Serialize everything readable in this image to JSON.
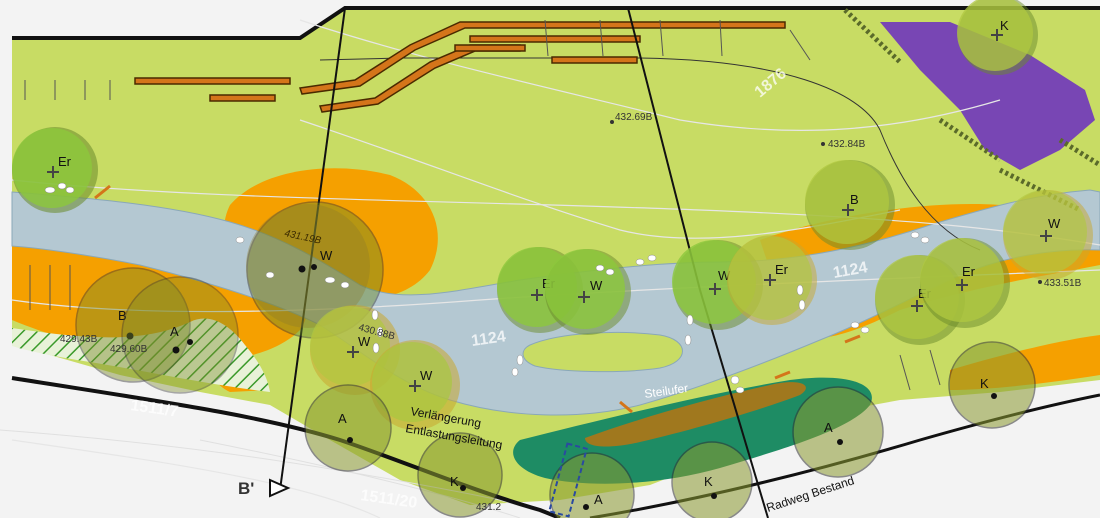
{
  "parcels": {
    "p1": "1511/7",
    "p2": "1511/20",
    "p3": "1124",
    "p4": "1124",
    "p5": "1876"
  },
  "elevations": {
    "e1": "432.69B",
    "e2": "432.84B",
    "e3": "431.19B",
    "e4": "430.88B",
    "e5": "433.51B",
    "e6": "429.43B",
    "e7": "429.60B",
    "e8": "431.2"
  },
  "annotations": {
    "extension_line1": "Verlängerung",
    "extension_line2": "Entlastungsleitung",
    "steilufer": "Steilufer",
    "radweg": "Radweg Bestand",
    "section_marker": "B'"
  },
  "tree_labels": {
    "er1": "Er",
    "w1": "W",
    "b1": "B",
    "a1": "A",
    "w2": "W",
    "w3": "W",
    "er2": "Er",
    "w4": "W",
    "w5": "W",
    "er3": "Er",
    "b2": "B",
    "w6": "W",
    "er4": "Er",
    "er5": "Er",
    "k1": "K",
    "a2": "A",
    "k2": "K",
    "a3": "A",
    "k3": "K",
    "a4": "A",
    "k4": "K"
  },
  "colors": {
    "meadow": "#c8dc64",
    "water": "#b4c8d2",
    "orange": "#f5a000",
    "purple": "#7846b4",
    "dark_green": "#1e8c64",
    "path_brown": "#a0781e",
    "tree_fill": "#8cc83c"
  }
}
